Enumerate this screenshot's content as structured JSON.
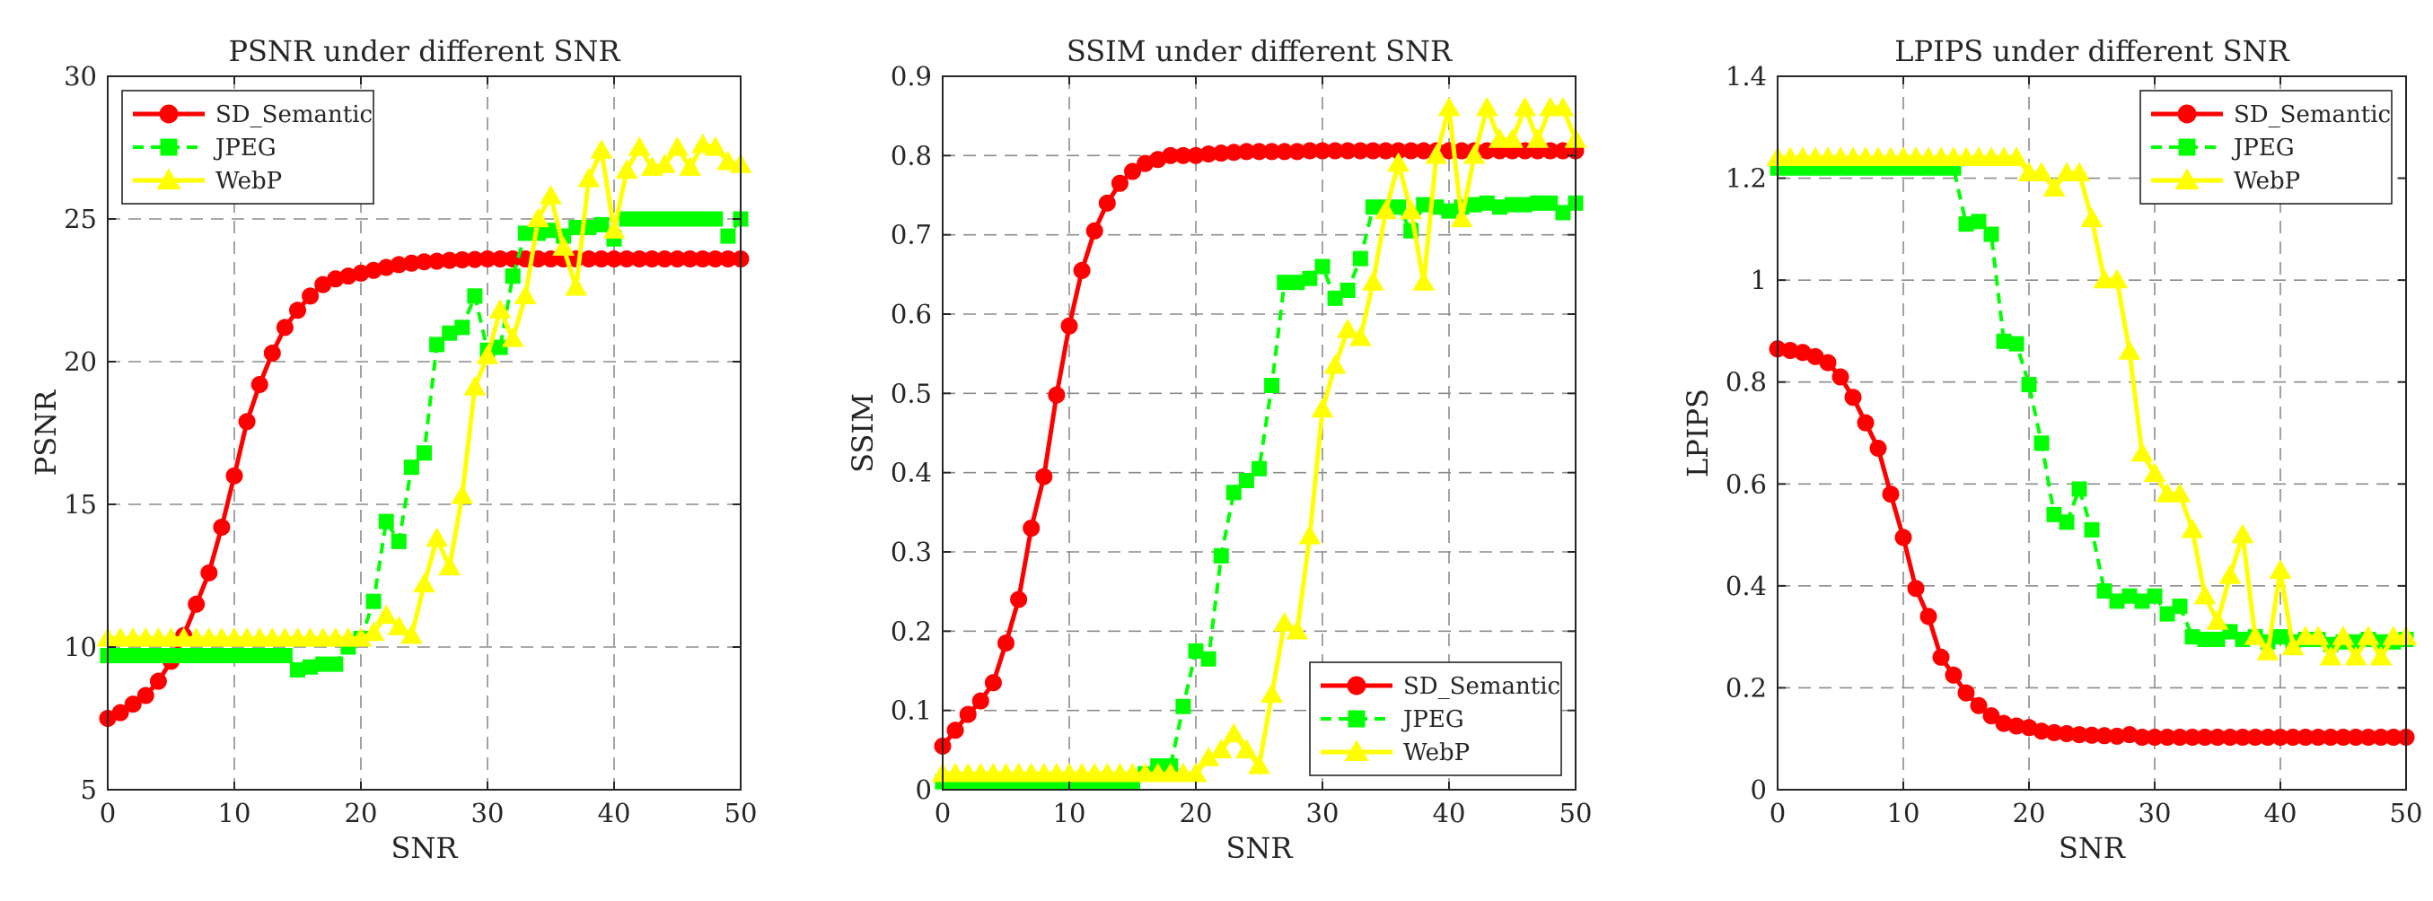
{
  "chart_data": [
    {
      "type": "line",
      "title": "PSNR under different SNR",
      "xlabel": "SNR",
      "ylabel": "PSNR",
      "xlim": [
        0,
        50
      ],
      "ylim": [
        5,
        30
      ],
      "xticks": [
        0,
        10,
        20,
        30,
        40,
        50
      ],
      "yticks": [
        5,
        10,
        15,
        20,
        25,
        30
      ],
      "xtick_labels": [
        "0",
        "10",
        "20",
        "30",
        "40",
        "50"
      ],
      "ytick_labels": [
        "5",
        "10",
        "15",
        "20",
        "25",
        "30"
      ],
      "grid": true,
      "legend": "top-left",
      "x": [
        0,
        1,
        2,
        3,
        4,
        5,
        6,
        7,
        8,
        9,
        10,
        11,
        12,
        13,
        14,
        15,
        16,
        17,
        18,
        19,
        20,
        21,
        22,
        23,
        24,
        25,
        26,
        27,
        28,
        29,
        30,
        31,
        32,
        33,
        34,
        35,
        36,
        37,
        38,
        39,
        40,
        41,
        42,
        43,
        44,
        45,
        46,
        47,
        48,
        49,
        50
      ],
      "series": [
        {
          "name": "SD_Semantic",
          "color": "#ff0000",
          "dash": "solid",
          "marker": "circle",
          "values": [
            7.5,
            7.7,
            8.0,
            8.3,
            8.8,
            9.5,
            10.4,
            11.5,
            12.6,
            14.2,
            16.0,
            17.9,
            19.2,
            20.3,
            21.2,
            21.8,
            22.3,
            22.7,
            22.9,
            23.0,
            23.1,
            23.2,
            23.3,
            23.4,
            23.45,
            23.5,
            23.52,
            23.55,
            23.57,
            23.58,
            23.6,
            23.6,
            23.6,
            23.6,
            23.6,
            23.6,
            23.6,
            23.6,
            23.6,
            23.6,
            23.6,
            23.6,
            23.6,
            23.6,
            23.6,
            23.6,
            23.6,
            23.6,
            23.6,
            23.6,
            23.6
          ]
        },
        {
          "name": "JPEG",
          "color": "#00ff00",
          "dash": "dashed",
          "marker": "square",
          "values": [
            9.7,
            9.7,
            9.7,
            9.7,
            9.7,
            9.7,
            9.7,
            9.7,
            9.7,
            9.7,
            9.7,
            9.7,
            9.7,
            9.7,
            9.7,
            9.2,
            9.3,
            9.4,
            9.4,
            10.0,
            10.3,
            11.6,
            14.4,
            13.7,
            16.3,
            16.8,
            20.6,
            21.0,
            21.2,
            22.3,
            20.4,
            20.5,
            23.0,
            24.5,
            24.5,
            24.6,
            24.4,
            24.7,
            24.7,
            24.8,
            24.3,
            25.0,
            25.0,
            25.0,
            25.0,
            25.0,
            25.0,
            25.0,
            25.0,
            24.4,
            25.0
          ]
        },
        {
          "name": "WebP",
          "color": "#ffff00",
          "dash": "solid",
          "marker": "triangle",
          "values": [
            10.3,
            10.3,
            10.3,
            10.3,
            10.3,
            10.3,
            10.3,
            10.3,
            10.3,
            10.3,
            10.3,
            10.3,
            10.3,
            10.3,
            10.3,
            10.3,
            10.3,
            10.3,
            10.3,
            10.3,
            10.3,
            10.5,
            11.1,
            10.7,
            10.4,
            12.2,
            13.8,
            12.8,
            15.3,
            19.1,
            20.2,
            21.8,
            20.8,
            22.3,
            25.0,
            25.8,
            24.0,
            22.6,
            26.4,
            27.4,
            24.6,
            26.7,
            27.5,
            26.8,
            26.9,
            27.5,
            26.8,
            27.6,
            27.5,
            27.0,
            26.9
          ]
        }
      ]
    },
    {
      "type": "line",
      "title": "SSIM under different SNR",
      "xlabel": "SNR",
      "ylabel": "SSIM",
      "xlim": [
        0,
        50
      ],
      "ylim": [
        0,
        0.9
      ],
      "xticks": [
        0,
        10,
        20,
        30,
        40,
        50
      ],
      "yticks": [
        0,
        0.1,
        0.2,
        0.3,
        0.4,
        0.5,
        0.6,
        0.7,
        0.8,
        0.9
      ],
      "xtick_labels": [
        "0",
        "10",
        "20",
        "30",
        "40",
        "50"
      ],
      "ytick_labels": [
        "0",
        "0.1",
        "0.2",
        "0.3",
        "0.4",
        "0.5",
        "0.6",
        "0.7",
        "0.8",
        "0.9"
      ],
      "grid": true,
      "legend": "bottom-right",
      "x": [
        0,
        1,
        2,
        3,
        4,
        5,
        6,
        7,
        8,
        9,
        10,
        11,
        12,
        13,
        14,
        15,
        16,
        17,
        18,
        19,
        20,
        21,
        22,
        23,
        24,
        25,
        26,
        27,
        28,
        29,
        30,
        31,
        32,
        33,
        34,
        35,
        36,
        37,
        38,
        39,
        40,
        41,
        42,
        43,
        44,
        45,
        46,
        47,
        48,
        49,
        50
      ],
      "series": [
        {
          "name": "SD_Semantic",
          "color": "#ff0000",
          "dash": "solid",
          "marker": "circle",
          "values": [
            0.055,
            0.075,
            0.095,
            0.112,
            0.135,
            0.185,
            0.24,
            0.33,
            0.395,
            0.498,
            0.585,
            0.655,
            0.705,
            0.74,
            0.765,
            0.78,
            0.79,
            0.795,
            0.8,
            0.8,
            0.8,
            0.802,
            0.803,
            0.804,
            0.805,
            0.805,
            0.805,
            0.805,
            0.805,
            0.806,
            0.806,
            0.806,
            0.806,
            0.806,
            0.806,
            0.806,
            0.806,
            0.806,
            0.806,
            0.806,
            0.806,
            0.806,
            0.806,
            0.806,
            0.806,
            0.806,
            0.806,
            0.806,
            0.806,
            0.806,
            0.806
          ]
        },
        {
          "name": "JPEG",
          "color": "#00ff00",
          "dash": "dashed",
          "marker": "square",
          "values": [
            0.01,
            0.01,
            0.01,
            0.01,
            0.01,
            0.01,
            0.01,
            0.01,
            0.01,
            0.01,
            0.01,
            0.01,
            0.01,
            0.01,
            0.01,
            0.01,
            0.02,
            0.03,
            0.03,
            0.105,
            0.175,
            0.165,
            0.295,
            0.375,
            0.39,
            0.405,
            0.51,
            0.64,
            0.64,
            0.645,
            0.66,
            0.62,
            0.63,
            0.67,
            0.735,
            0.735,
            0.735,
            0.705,
            0.738,
            0.735,
            0.73,
            0.735,
            0.738,
            0.74,
            0.735,
            0.738,
            0.738,
            0.74,
            0.74,
            0.728,
            0.74
          ]
        },
        {
          "name": "WebP",
          "color": "#ffff00",
          "dash": "solid",
          "marker": "triangle",
          "values": [
            0.02,
            0.02,
            0.02,
            0.02,
            0.02,
            0.02,
            0.02,
            0.02,
            0.02,
            0.02,
            0.02,
            0.02,
            0.02,
            0.02,
            0.02,
            0.02,
            0.02,
            0.02,
            0.02,
            0.02,
            0.02,
            0.04,
            0.05,
            0.07,
            0.05,
            0.03,
            0.12,
            0.21,
            0.2,
            0.32,
            0.48,
            0.535,
            0.58,
            0.57,
            0.64,
            0.73,
            0.79,
            0.73,
            0.64,
            0.8,
            0.86,
            0.72,
            0.8,
            0.86,
            0.82,
            0.82,
            0.86,
            0.82,
            0.86,
            0.86,
            0.82
          ]
        }
      ]
    },
    {
      "type": "line",
      "title": "LPIPS under different SNR",
      "xlabel": "SNR",
      "ylabel": "LPIPS",
      "xlim": [
        0,
        50
      ],
      "ylim": [
        0,
        1.4
      ],
      "xticks": [
        0,
        10,
        20,
        30,
        40,
        50
      ],
      "yticks": [
        0,
        0.2,
        0.4,
        0.6,
        0.8,
        1,
        1.2,
        1.4
      ],
      "xtick_labels": [
        "0",
        "10",
        "20",
        "30",
        "40",
        "50"
      ],
      "ytick_labels": [
        "0",
        "0.2",
        "0.4",
        "0.6",
        "0.8",
        "1",
        "1.2",
        "1.4"
      ],
      "grid": true,
      "legend": "top-right",
      "x": [
        0,
        1,
        2,
        3,
        4,
        5,
        6,
        7,
        8,
        9,
        10,
        11,
        12,
        13,
        14,
        15,
        16,
        17,
        18,
        19,
        20,
        21,
        22,
        23,
        24,
        25,
        26,
        27,
        28,
        29,
        30,
        31,
        32,
        33,
        34,
        35,
        36,
        37,
        38,
        39,
        40,
        41,
        42,
        43,
        44,
        45,
        46,
        47,
        48,
        49,
        50
      ],
      "series": [
        {
          "name": "SD_Semantic",
          "color": "#ff0000",
          "dash": "solid",
          "marker": "circle",
          "values": [
            0.865,
            0.862,
            0.858,
            0.85,
            0.838,
            0.81,
            0.77,
            0.72,
            0.67,
            0.58,
            0.495,
            0.395,
            0.34,
            0.26,
            0.225,
            0.19,
            0.165,
            0.145,
            0.13,
            0.125,
            0.122,
            0.115,
            0.112,
            0.11,
            0.108,
            0.107,
            0.106,
            0.105,
            0.108,
            0.103,
            0.103,
            0.103,
            0.103,
            0.103,
            0.103,
            0.103,
            0.103,
            0.103,
            0.103,
            0.103,
            0.103,
            0.103,
            0.103,
            0.103,
            0.103,
            0.103,
            0.103,
            0.103,
            0.103,
            0.103,
            0.103
          ]
        },
        {
          "name": "JPEG",
          "color": "#00ff00",
          "dash": "dashed",
          "marker": "square",
          "values": [
            1.22,
            1.22,
            1.22,
            1.22,
            1.22,
            1.22,
            1.22,
            1.22,
            1.22,
            1.22,
            1.22,
            1.22,
            1.22,
            1.22,
            1.22,
            1.11,
            1.115,
            1.09,
            0.88,
            0.875,
            0.795,
            0.68,
            0.54,
            0.525,
            0.59,
            0.51,
            0.39,
            0.37,
            0.38,
            0.37,
            0.38,
            0.345,
            0.36,
            0.3,
            0.295,
            0.295,
            0.31,
            0.295,
            0.3,
            0.29,
            0.3,
            0.29,
            0.295,
            0.295,
            0.285,
            0.29,
            0.29,
            0.295,
            0.29,
            0.29,
            0.295
          ]
        },
        {
          "name": "WebP",
          "color": "#ffff00",
          "dash": "solid",
          "marker": "triangle",
          "values": [
            1.24,
            1.24,
            1.24,
            1.24,
            1.24,
            1.24,
            1.24,
            1.24,
            1.24,
            1.24,
            1.24,
            1.24,
            1.24,
            1.24,
            1.24,
            1.24,
            1.24,
            1.24,
            1.24,
            1.24,
            1.21,
            1.21,
            1.18,
            1.21,
            1.21,
            1.12,
            1.0,
            1.0,
            0.86,
            0.66,
            0.62,
            0.58,
            0.58,
            0.51,
            0.38,
            0.33,
            0.42,
            0.5,
            0.3,
            0.27,
            0.43,
            0.28,
            0.3,
            0.3,
            0.26,
            0.3,
            0.26,
            0.3,
            0.26,
            0.3,
            0.3
          ]
        }
      ]
    }
  ]
}
